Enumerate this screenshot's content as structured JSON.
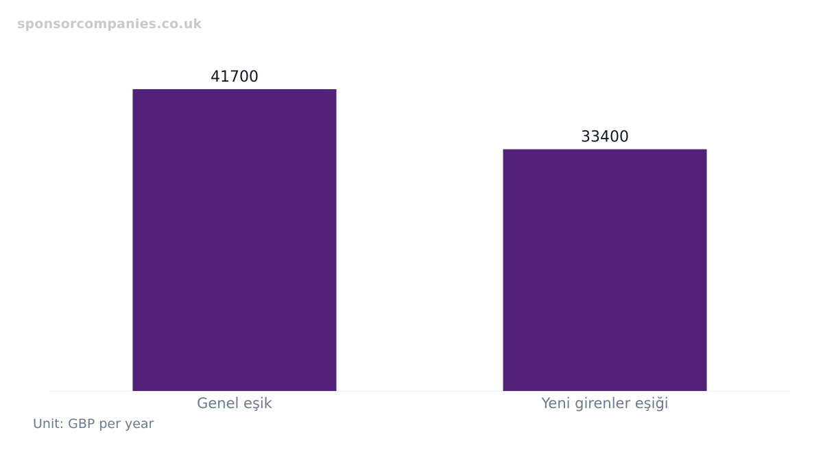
{
  "watermark": "sponsorcompanies.co.uk",
  "unit_note": "Unit: GBP per year",
  "chart_data": {
    "type": "bar",
    "categories": [
      "Genel eşik",
      "Yeni girenler eşiği"
    ],
    "values": [
      41700,
      33400
    ],
    "data_labels": [
      "41700",
      "33400"
    ],
    "ylim": [
      0,
      41700
    ],
    "grid": false,
    "bar_color": "#52217a"
  }
}
